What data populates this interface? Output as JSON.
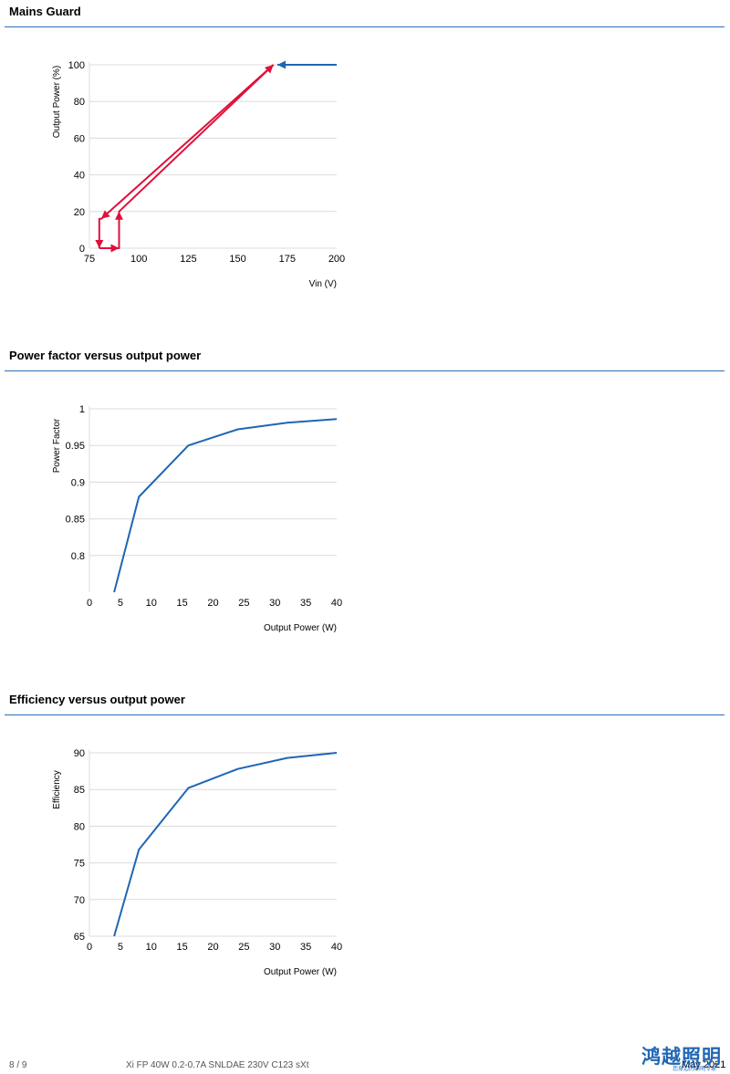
{
  "sections": [
    {
      "title": "Mains Guard"
    },
    {
      "title": "Power factor versus output power"
    },
    {
      "title": "Efficiency versus output power"
    }
  ],
  "chart_data": [
    {
      "type": "line",
      "title": "",
      "xlabel": "Vin (V)",
      "ylabel": "Output Power (%)",
      "xlim": [
        75,
        200
      ],
      "ylim": [
        0,
        100
      ],
      "x_ticks": [
        "75",
        "100",
        "125",
        "150",
        "175",
        "200"
      ],
      "y_ticks": [
        "0",
        "20",
        "40",
        "60",
        "80",
        "100"
      ],
      "grid": "horizontal",
      "colors": {
        "falling": "#e0103a",
        "rising": "#e0103a",
        "steady": "#1f66b3"
      },
      "series": [
        {
          "values": [
            [
              200,
              100
            ],
            [
              170,
              100
            ]
          ]
        },
        {
          "values": [
            [
              168,
              100
            ],
            [
              81,
              16
            ],
            [
              80,
              16
            ],
            [
              80,
              0
            ]
          ]
        },
        {
          "values": [
            [
              80,
              0
            ],
            [
              90,
              0
            ],
            [
              90,
              0
            ],
            [
              90,
              20
            ],
            [
              168,
              100
            ]
          ]
        }
      ]
    },
    {
      "type": "line",
      "title": "",
      "xlabel": "Output Power (W)",
      "ylabel": "Power Factor",
      "xlim": [
        0,
        40
      ],
      "ylim": [
        0.75,
        1
      ],
      "x_ticks": [
        "0",
        "5",
        "10",
        "15",
        "20",
        "25",
        "30",
        "35",
        "40"
      ],
      "y_ticks": [
        "0.8",
        "0.85",
        "0.9",
        "0.95",
        "1"
      ],
      "grid": "horizontal",
      "colors": {
        "line": "#1f66b3"
      },
      "series": [
        {
          "values": [
            [
              4,
              0.75
            ],
            [
              8,
              0.88
            ],
            [
              16,
              0.95
            ],
            [
              24,
              0.972
            ],
            [
              32,
              0.981
            ],
            [
              40,
              0.986
            ]
          ]
        }
      ]
    },
    {
      "type": "line",
      "title": "",
      "xlabel": "Output Power (W)",
      "ylabel": "Efficiency",
      "xlim": [
        0,
        40
      ],
      "ylim": [
        65,
        90
      ],
      "x_ticks": [
        "0",
        "5",
        "10",
        "15",
        "20",
        "25",
        "30",
        "35",
        "40"
      ],
      "y_ticks": [
        "65",
        "70",
        "75",
        "80",
        "85",
        "90"
      ],
      "grid": "horizontal",
      "colors": {
        "line": "#1f66b3"
      },
      "series": [
        {
          "values": [
            [
              4,
              65
            ],
            [
              8,
              76.8
            ],
            [
              16,
              85.2
            ],
            [
              24,
              87.8
            ],
            [
              32,
              89.3
            ],
            [
              40,
              90
            ]
          ]
        }
      ]
    }
  ],
  "footer": {
    "page": "8 / 9",
    "product": "Xi FP 40W 0.2-0.7A SNLDAE 230V C123 sXt",
    "date": "May 2021",
    "logo_text": "鸿越照明",
    "logo_sub": "您身边的照明专家"
  }
}
